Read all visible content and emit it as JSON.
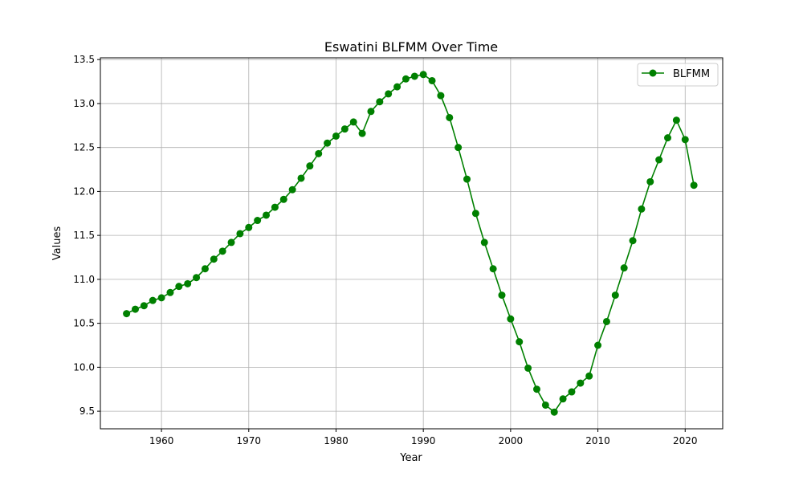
{
  "chart_data": {
    "type": "line",
    "title": "Eswatini BLFMM Over Time",
    "xlabel": "Year",
    "ylabel": "Values",
    "xlim": [
      1953,
      2024.3
    ],
    "ylim": [
      9.3,
      13.52
    ],
    "xticks": [
      1960,
      1970,
      1980,
      1990,
      2000,
      2010,
      2020
    ],
    "xtick_labels": [
      "1960",
      "1970",
      "1980",
      "1990",
      "2000",
      "2010",
      "2020"
    ],
    "yticks": [
      9.5,
      10.0,
      10.5,
      11.0,
      11.5,
      12.0,
      12.5,
      13.0,
      13.5
    ],
    "ytick_labels": [
      "9.5",
      "10.0",
      "10.5",
      "11.0",
      "11.5",
      "12.0",
      "12.5",
      "13.0",
      "13.5"
    ],
    "grid": true,
    "legend_position": "top-right",
    "series": [
      {
        "name": "BLFMM",
        "color": "#008000",
        "marker": "circle",
        "x": [
          1956,
          1957,
          1958,
          1959,
          1960,
          1961,
          1962,
          1963,
          1964,
          1965,
          1966,
          1967,
          1968,
          1969,
          1970,
          1971,
          1972,
          1973,
          1974,
          1975,
          1976,
          1977,
          1978,
          1979,
          1980,
          1981,
          1982,
          1983,
          1984,
          1985,
          1986,
          1987,
          1988,
          1989,
          1990,
          1991,
          1992,
          1993,
          1994,
          1995,
          1996,
          1997,
          1998,
          1999,
          2000,
          2001,
          2002,
          2003,
          2004,
          2005,
          2006,
          2007,
          2008,
          2009,
          2010,
          2011,
          2012,
          2013,
          2014,
          2015,
          2016,
          2017,
          2018,
          2019,
          2020,
          2021
        ],
        "y": [
          10.61,
          10.66,
          10.7,
          10.76,
          10.79,
          10.85,
          10.92,
          10.95,
          11.02,
          11.12,
          11.23,
          11.32,
          11.42,
          11.52,
          11.59,
          11.67,
          11.73,
          11.82,
          11.91,
          12.02,
          12.15,
          12.29,
          12.43,
          12.55,
          12.63,
          12.71,
          12.79,
          12.66,
          12.91,
          13.02,
          13.11,
          13.19,
          13.28,
          13.31,
          13.33,
          13.26,
          13.09,
          12.84,
          12.5,
          12.14,
          11.75,
          11.42,
          11.12,
          10.82,
          10.55,
          10.29,
          9.99,
          9.75,
          9.57,
          9.49,
          9.64,
          9.72,
          9.82,
          9.9,
          10.25,
          10.52,
          10.82,
          11.13,
          11.44,
          11.8,
          12.11,
          12.36,
          12.61,
          12.81,
          12.59,
          12.07
        ]
      }
    ]
  }
}
